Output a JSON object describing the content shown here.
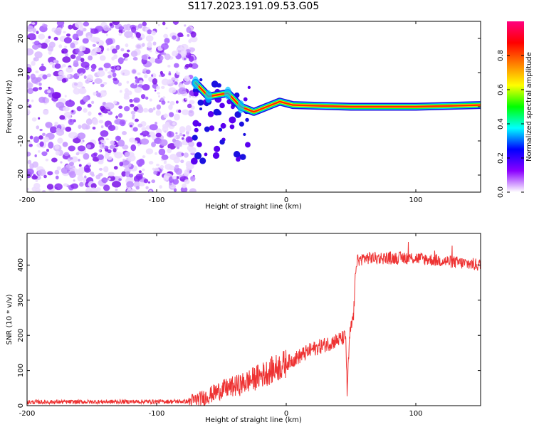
{
  "title": "S117.2023.191.09.53.G05",
  "chart_data": [
    {
      "type": "heatmap",
      "xlabel": "Height of straight line (km)",
      "ylabel": "Frequency (Hz)",
      "xlim": [
        -200,
        150
      ],
      "ylim": [
        -25,
        25
      ],
      "x_ticks": [
        "-200",
        "-100",
        "0",
        "100"
      ],
      "y_ticks": [
        "-20",
        "-10",
        "0",
        "10",
        "20"
      ],
      "colorbar": {
        "label": "Normalized spectral amplitude",
        "range": [
          0,
          1
        ],
        "ticks": [
          "0.0",
          "0.2",
          "0.4",
          "0.6",
          "0.8"
        ],
        "colors": [
          "#ffffff",
          "#8b00ff",
          "#0000ff",
          "#00ffff",
          "#00ff00",
          "#ffff00",
          "#ff8000",
          "#ff0000",
          "#ff0080"
        ]
      },
      "signal_track": [
        {
          "x": -70,
          "y": 7
        },
        {
          "x": -60,
          "y": 3
        },
        {
          "x": -45,
          "y": 4
        },
        {
          "x": -35,
          "y": 0
        },
        {
          "x": -25,
          "y": -1.5
        },
        {
          "x": -15,
          "y": 0
        },
        {
          "x": -5,
          "y": 1.5
        },
        {
          "x": 5,
          "y": 0.5
        },
        {
          "x": 50,
          "y": 0
        },
        {
          "x": 100,
          "y": 0
        },
        {
          "x": 150,
          "y": 0.5
        }
      ]
    },
    {
      "type": "line",
      "xlabel": "Height of straight line (km)",
      "ylabel": "SNR (10 * v/v)",
      "xlim": [
        -200,
        150
      ],
      "ylim": [
        0,
        490
      ],
      "x_ticks": [
        "-200",
        "-100",
        "0",
        "100"
      ],
      "y_ticks": [
        "0",
        "100",
        "200",
        "300",
        "400"
      ],
      "color": "#ee3333",
      "trend": [
        {
          "x": -200,
          "y": 10
        },
        {
          "x": -75,
          "y": 12
        },
        {
          "x": -65,
          "y": 20
        },
        {
          "x": -50,
          "y": 45
        },
        {
          "x": -35,
          "y": 60
        },
        {
          "x": -20,
          "y": 85
        },
        {
          "x": 0,
          "y": 120
        },
        {
          "x": 20,
          "y": 160
        },
        {
          "x": 35,
          "y": 180
        },
        {
          "x": 46,
          "y": 195
        },
        {
          "x": 47,
          "y": 40
        },
        {
          "x": 49,
          "y": 200
        },
        {
          "x": 52,
          "y": 260
        },
        {
          "x": 54,
          "y": 410
        },
        {
          "x": 60,
          "y": 420
        },
        {
          "x": 100,
          "y": 420
        },
        {
          "x": 150,
          "y": 400
        }
      ]
    }
  ]
}
